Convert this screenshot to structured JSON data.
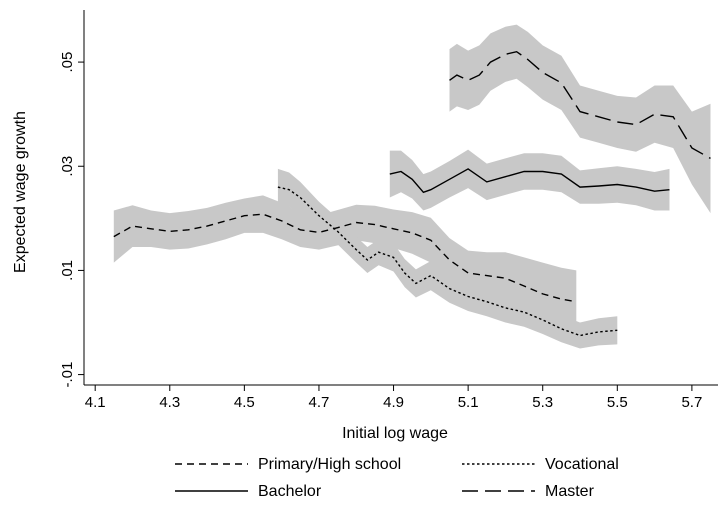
{
  "chart_data": {
    "type": "line",
    "title": "",
    "xlabel": "Initial log wage",
    "ylabel": "Expected wage growth",
    "xlim": [
      4.07,
      5.77
    ],
    "ylim": [
      -0.012,
      0.06
    ],
    "xticks": [
      4.1,
      4.3,
      4.5,
      4.7,
      4.9,
      5.1,
      5.3,
      5.5,
      5.7
    ],
    "xtick_labels": [
      "4.1",
      "4.3",
      "4.5",
      "4.7",
      "4.9",
      "5.1",
      "5.3",
      "5.5",
      "5.7"
    ],
    "yticks": [
      -0.01,
      0.01,
      0.03,
      0.05
    ],
    "ytick_labels": [
      "-.01",
      ".01",
      ".03",
      ".05"
    ],
    "grid": false,
    "legend": "bottom",
    "confidence_band_color": "#c8c8c8",
    "series": [
      {
        "name": "Primary/High school",
        "dash": "dash",
        "x": [
          4.15,
          4.2,
          4.25,
          4.3,
          4.35,
          4.4,
          4.45,
          4.5,
          4.55,
          4.6,
          4.65,
          4.7,
          4.75,
          4.8,
          4.85,
          4.9,
          4.95,
          5.0,
          5.05,
          5.1,
          5.15,
          5.2,
          5.25,
          5.3,
          5.35,
          5.39
        ],
        "y": [
          0.0165,
          0.0185,
          0.018,
          0.0175,
          0.0178,
          0.0185,
          0.0195,
          0.0205,
          0.0208,
          0.0195,
          0.0178,
          0.0173,
          0.0182,
          0.0192,
          0.0188,
          0.018,
          0.0172,
          0.0158,
          0.012,
          0.0095,
          0.009,
          0.0085,
          0.007,
          0.0055,
          0.0045,
          0.004
        ],
        "lower": [
          0.0115,
          0.0145,
          0.0145,
          0.014,
          0.0142,
          0.015,
          0.016,
          0.0172,
          0.0172,
          0.016,
          0.0145,
          0.014,
          0.0148,
          0.0158,
          0.0152,
          0.0143,
          0.0132,
          0.0115,
          0.0078,
          0.0052,
          0.0045,
          0.0035,
          0.0015,
          -0.0005,
          -0.0015,
          -0.002
        ],
        "upper": [
          0.0215,
          0.0225,
          0.0215,
          0.021,
          0.0214,
          0.022,
          0.023,
          0.0238,
          0.0244,
          0.023,
          0.0211,
          0.0206,
          0.0216,
          0.0226,
          0.0224,
          0.0217,
          0.0212,
          0.0201,
          0.0162,
          0.0138,
          0.0135,
          0.0135,
          0.0125,
          0.0115,
          0.0105,
          0.01
        ]
      },
      {
        "name": "Vocational",
        "dash": "dot",
        "x": [
          4.59,
          4.62,
          4.65,
          4.7,
          4.75,
          4.8,
          4.83,
          4.86,
          4.9,
          4.93,
          4.96,
          5.0,
          5.05,
          5.1,
          5.15,
          5.2,
          5.25,
          5.3,
          5.35,
          5.4,
          5.45,
          5.5
        ],
        "y": [
          0.026,
          0.0255,
          0.024,
          0.0205,
          0.0175,
          0.014,
          0.012,
          0.0135,
          0.0125,
          0.0095,
          0.0075,
          0.009,
          0.0065,
          0.005,
          0.004,
          0.0028,
          0.002,
          0.0005,
          -0.0012,
          -0.0025,
          -0.0018,
          -0.0015
        ],
        "lower": [
          0.0225,
          0.0222,
          0.021,
          0.0178,
          0.015,
          0.0115,
          0.0095,
          0.011,
          0.0098,
          0.0068,
          0.0048,
          0.0062,
          0.0038,
          0.0022,
          0.0012,
          0.0,
          -0.0008,
          -0.0022,
          -0.0038,
          -0.005,
          -0.0044,
          -0.0042
        ],
        "upper": [
          0.0295,
          0.0288,
          0.027,
          0.0232,
          0.02,
          0.0165,
          0.0145,
          0.016,
          0.0152,
          0.0122,
          0.0102,
          0.0118,
          0.0092,
          0.0078,
          0.0068,
          0.0056,
          0.0048,
          0.0032,
          0.0014,
          0.0,
          0.0008,
          0.0012
        ]
      },
      {
        "name": "Bachelor",
        "dash": "solid",
        "x": [
          4.89,
          4.92,
          4.95,
          4.98,
          5.0,
          5.05,
          5.1,
          5.15,
          5.2,
          5.25,
          5.3,
          5.35,
          5.4,
          5.45,
          5.5,
          5.55,
          5.6,
          5.64
        ],
        "y": [
          0.0285,
          0.029,
          0.0275,
          0.025,
          0.0255,
          0.0275,
          0.0295,
          0.027,
          0.028,
          0.029,
          0.029,
          0.0285,
          0.026,
          0.0262,
          0.0265,
          0.026,
          0.0252,
          0.0255
        ],
        "lower": [
          0.024,
          0.025,
          0.0238,
          0.0215,
          0.022,
          0.024,
          0.0258,
          0.0235,
          0.0245,
          0.0255,
          0.0255,
          0.025,
          0.0228,
          0.0228,
          0.023,
          0.0225,
          0.0215,
          0.0215
        ],
        "upper": [
          0.033,
          0.033,
          0.0312,
          0.0285,
          0.029,
          0.031,
          0.0332,
          0.0305,
          0.0315,
          0.0325,
          0.0325,
          0.032,
          0.0292,
          0.0296,
          0.03,
          0.0295,
          0.0289,
          0.0295
        ]
      },
      {
        "name": "Master",
        "dash": "longdash",
        "x": [
          5.05,
          5.07,
          5.1,
          5.13,
          5.16,
          5.2,
          5.23,
          5.26,
          5.3,
          5.35,
          5.4,
          5.45,
          5.5,
          5.55,
          5.6,
          5.65,
          5.7,
          5.75
        ],
        "y": [
          0.0465,
          0.0475,
          0.0465,
          0.0475,
          0.05,
          0.0515,
          0.052,
          0.0505,
          0.048,
          0.046,
          0.0405,
          0.0395,
          0.0385,
          0.038,
          0.04,
          0.0395,
          0.0335,
          0.0315
        ],
        "lower": [
          0.0405,
          0.0415,
          0.0408,
          0.0418,
          0.0445,
          0.0462,
          0.0468,
          0.0452,
          0.0428,
          0.0408,
          0.0355,
          0.0345,
          0.0335,
          0.0328,
          0.0345,
          0.0335,
          0.0265,
          0.021
        ],
        "upper": [
          0.0525,
          0.0535,
          0.0522,
          0.0532,
          0.0555,
          0.0568,
          0.0572,
          0.0558,
          0.0532,
          0.0512,
          0.0455,
          0.0445,
          0.0435,
          0.0432,
          0.0455,
          0.0455,
          0.0405,
          0.042
        ]
      }
    ]
  }
}
